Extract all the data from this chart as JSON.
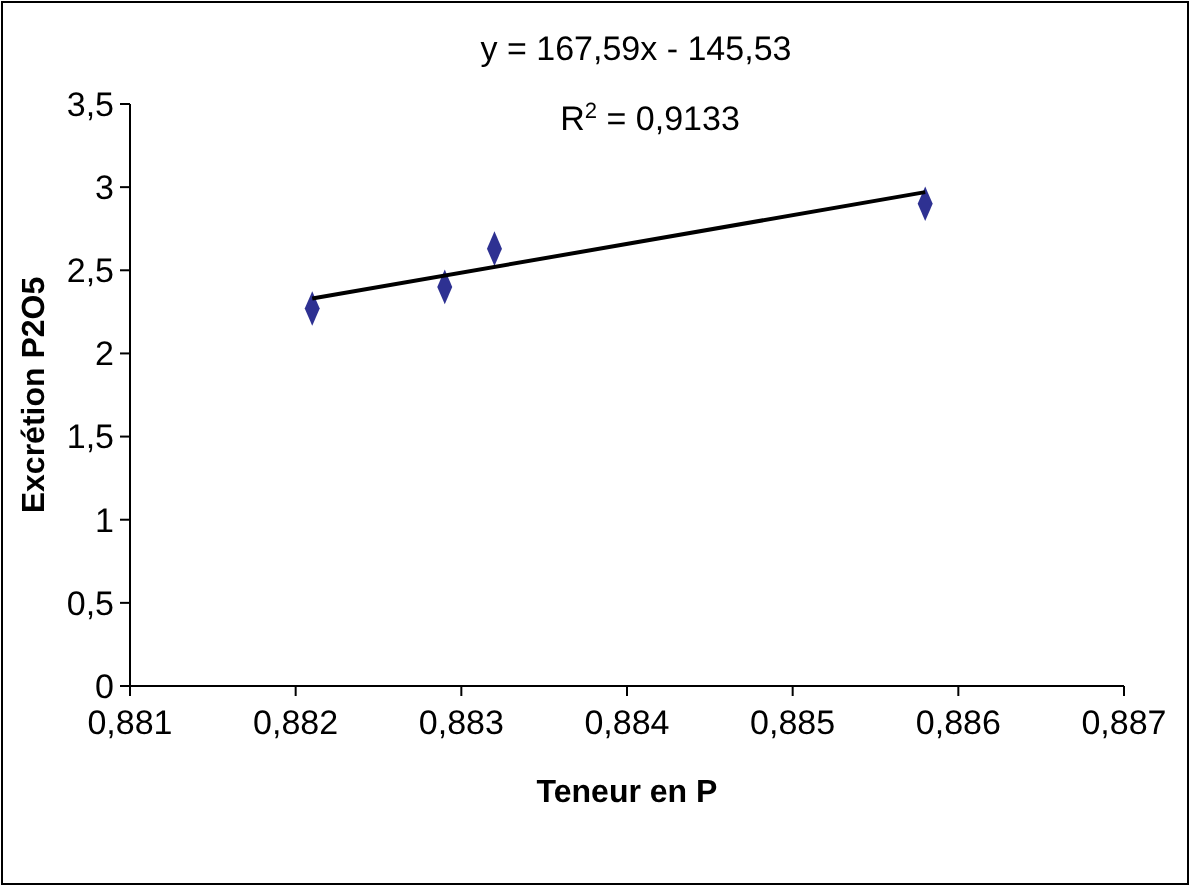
{
  "chart_data": {
    "type": "scatter",
    "xlabel": "Teneur en P",
    "ylabel": "Excrétion P2O5",
    "annotations": [
      "y = 167,59x - 145,53",
      "R$^{2}$ = 0,9133"
    ],
    "xlim": [
      0.881,
      0.887
    ],
    "ylim": [
      0,
      3.5
    ],
    "xticks": [
      {
        "value": 0.881,
        "label": "0,881"
      },
      {
        "value": 0.882,
        "label": "0,882"
      },
      {
        "value": 0.883,
        "label": "0,883"
      },
      {
        "value": 0.884,
        "label": "0,884"
      },
      {
        "value": 0.885,
        "label": "0,885"
      },
      {
        "value": 0.886,
        "label": "0,886"
      },
      {
        "value": 0.887,
        "label": "0,887"
      }
    ],
    "yticks": [
      0,
      {
        "value": 0.5,
        "label": "0,5"
      },
      1,
      {
        "value": 1.5,
        "label": "1,5"
      },
      2,
      {
        "value": 2.5,
        "label": "2,5"
      },
      3,
      {
        "value": 3.5,
        "label": "3,5"
      }
    ],
    "grid": false,
    "marker": "diamond",
    "series": [
      {
        "color": "#2e3192",
        "x": [
          0.8821,
          0.8829,
          0.8832,
          0.8858
        ],
        "values": [
          2.27,
          2.4,
          2.63,
          2.9
        ]
      },
      {
        "type": "line",
        "color": "#000000",
        "marker": "none",
        "line_style": "solid",
        "x": [
          0.8821,
          0.8858
        ],
        "values": [
          2.33,
          2.97
        ]
      }
    ]
  }
}
